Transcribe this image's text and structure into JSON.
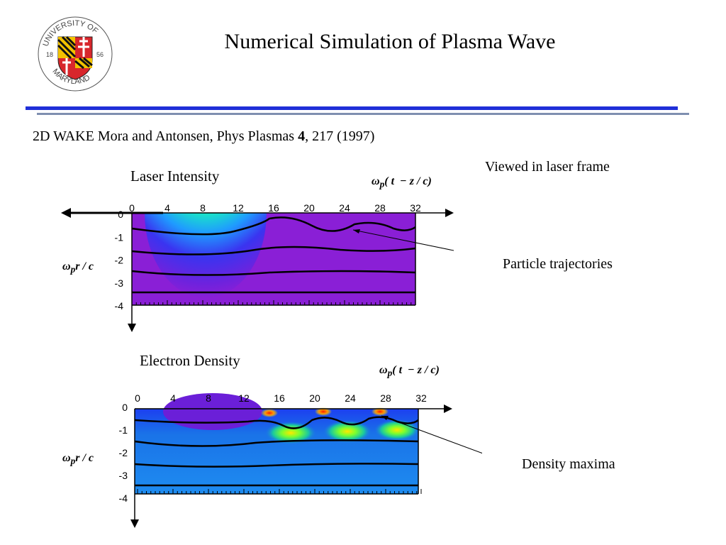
{
  "slide": {
    "title": "Numerical Simulation of Plasma Wave",
    "citation_prefix": "2D WAKE  Mora and Antonsen, Phys Plasmas ",
    "citation_volume": "4",
    "citation_suffix": ", 217 (1997)",
    "viewed_note": "Viewed in laser frame"
  },
  "logo": {
    "text_top": "UNIVERSITY OF",
    "text_bottom": "MARYLAND",
    "year_left": "18",
    "year_right": "56"
  },
  "panels": {
    "top": {
      "title": "Laser Intensity",
      "x_ticks": [
        "0",
        "4",
        "8",
        "12",
        "16",
        "20",
        "24",
        "28",
        "32"
      ],
      "y_ticks": [
        "0",
        "-1",
        "-2",
        "-3",
        "-4"
      ],
      "annotation": "Particle trajectories"
    },
    "bottom": {
      "title": "Electron Density",
      "x_ticks": [
        "0",
        "4",
        "8",
        "12",
        "16",
        "20",
        "24",
        "28",
        "32"
      ],
      "y_ticks": [
        "0",
        "-1",
        "-2",
        "-3",
        "-4"
      ],
      "annotation": "Density maxima"
    }
  },
  "colors": {
    "rule_blue": "#1f2fd8",
    "plasma_purple": "#8a1fd6",
    "density_blue": "#1a73e8"
  }
}
